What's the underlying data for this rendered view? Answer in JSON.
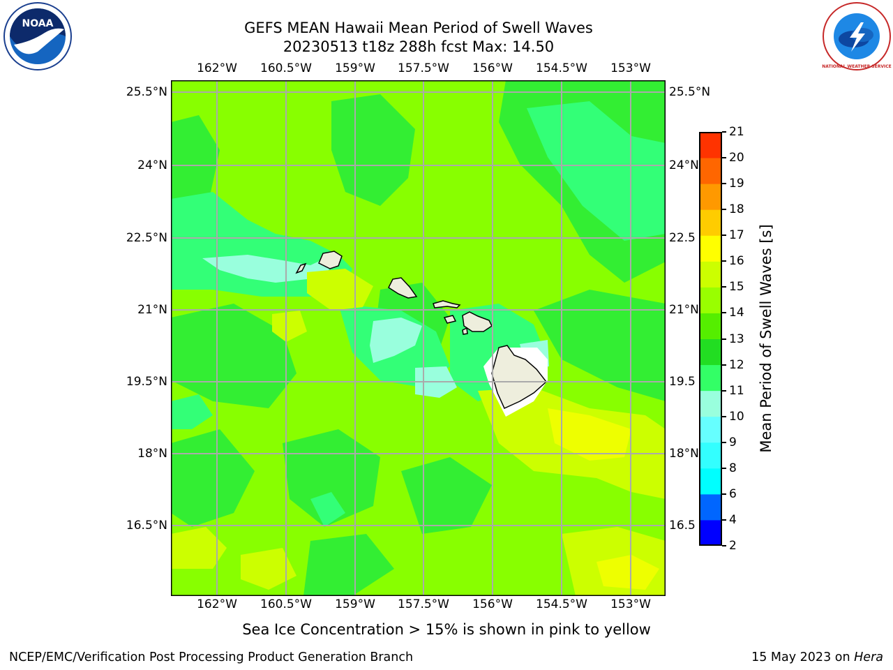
{
  "header": {
    "title_line1": "GEFS MEAN Hawaii Mean Period of Swell Waves",
    "title_line2": "20230513 t18z 288h fcst   Max: 14.50"
  },
  "logos": {
    "left": "NOAA",
    "right": "NATIONAL WEATHER SERVICE"
  },
  "map": {
    "lon_ticks": [
      "162°W",
      "160.5°W",
      "159°W",
      "157.5°W",
      "156°W",
      "154.5°W",
      "153°W"
    ],
    "lat_ticks": [
      "25.5°N",
      "24°N",
      "22.5°N",
      "21°N",
      "19.5°N",
      "18°N",
      "16.5°N"
    ],
    "lat_ticks_right": [
      "25.5°N",
      "24°N",
      "22.5",
      "21°N",
      "19.5",
      "18°N",
      "16.5"
    ],
    "note": "Sea Ice Concentration > 15% is shown in pink to yellow"
  },
  "colorbar": {
    "label": "Mean Period of Swell Waves [s]",
    "levels": [
      "2",
      "4",
      "6",
      "8",
      "9",
      "10",
      "11",
      "12",
      "13",
      "14",
      "15",
      "16",
      "17",
      "18",
      "19",
      "20",
      "21"
    ],
    "colors": [
      "#0000ff",
      "#0066ff",
      "#00ffff",
      "#33ffff",
      "#66ffff",
      "#99ffdd",
      "#33ff66",
      "#22dd22",
      "#55ee00",
      "#99ff00",
      "#ccff00",
      "#ffff00",
      "#ffcc00",
      "#ff9900",
      "#ff6600",
      "#ff3300",
      "#ff0000"
    ]
  },
  "footer": {
    "left": "NCEP/EMC/Verification Post Processing Product Generation Branch",
    "right_date": "15 May 2023 on ",
    "right_host": "Hera"
  }
}
